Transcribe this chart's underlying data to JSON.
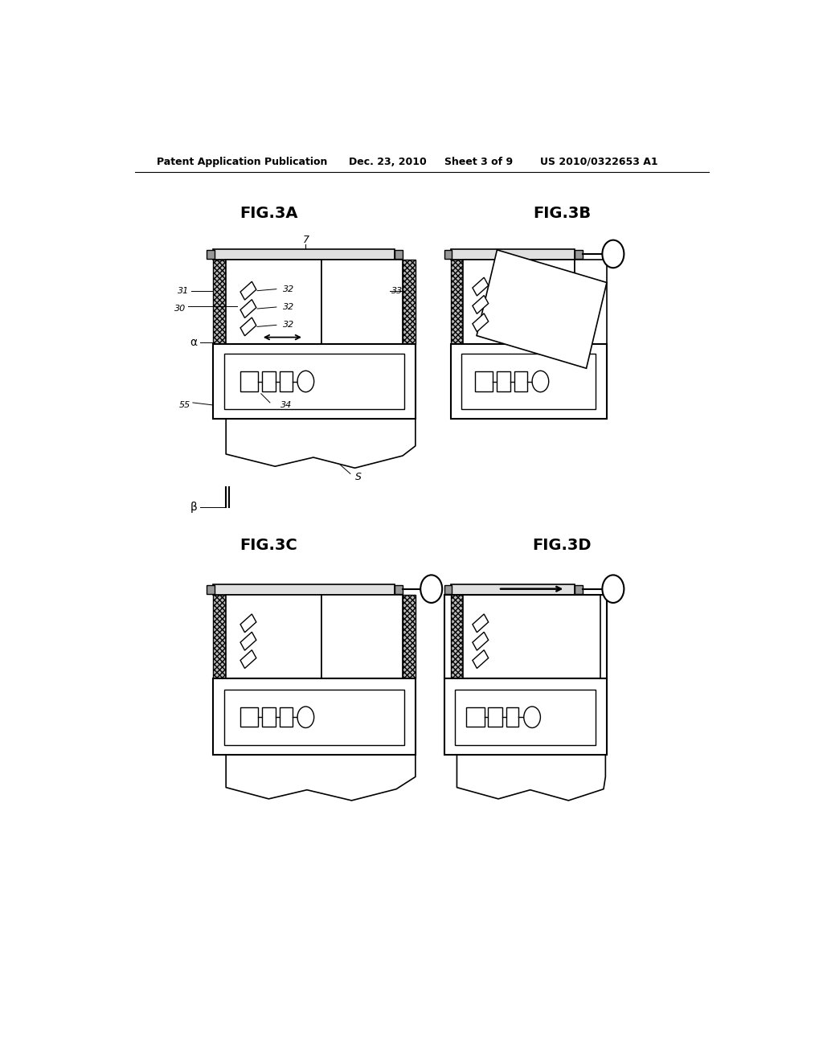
{
  "bg_color": "#ffffff",
  "header_text": "Patent Application Publication",
  "header_date": "Dec. 23, 2010",
  "header_sheet": "Sheet 3 of 9",
  "header_patent": "US 2010/0322653 A1",
  "fig_titles": [
    "FIG.3A",
    "FIG.3B",
    "FIG.3C",
    "FIG.3D"
  ]
}
